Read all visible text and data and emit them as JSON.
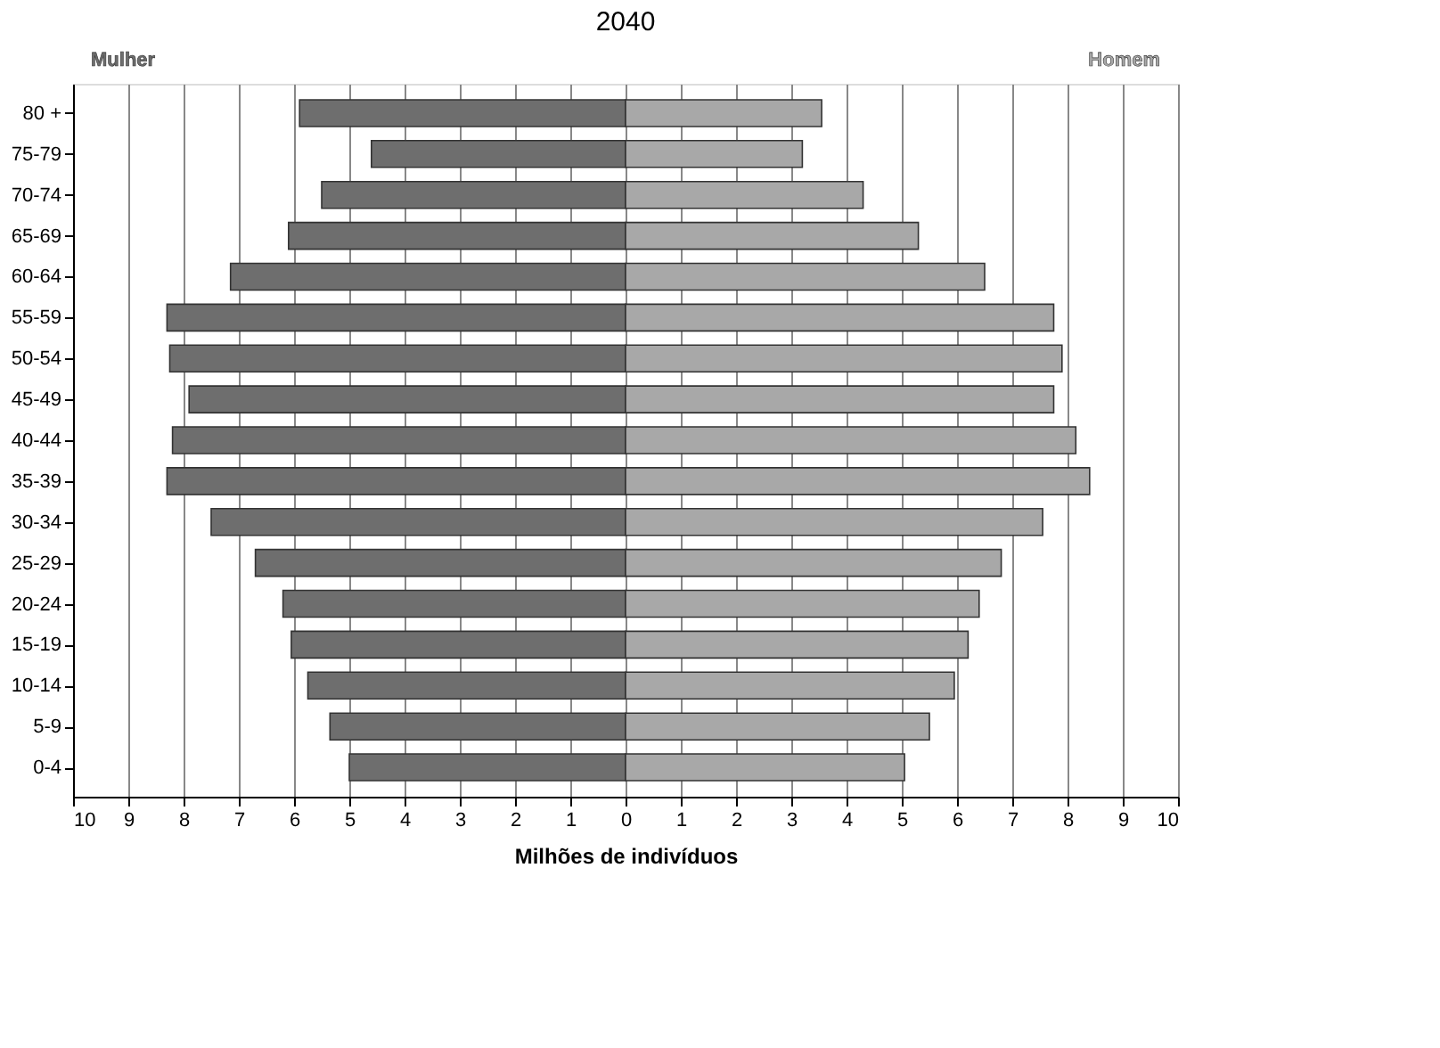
{
  "chart_data": {
    "type": "bar",
    "orientation": "horizontal",
    "stacked": true,
    "title": "2040",
    "xlabel": "Milhões de indivíduos",
    "categories": [
      "80 +",
      "75-79",
      "70-74",
      "65-69",
      "60-64",
      "55-59",
      "50-54",
      "45-49",
      "40-44",
      "35-39",
      "30-34",
      "25-29",
      "20-24",
      "15-19",
      "10-14",
      "5-9",
      "0-4"
    ],
    "series": [
      {
        "name": "Mulher",
        "color": "#6e6e6e",
        "values": [
          -5.9,
          -4.6,
          -5.5,
          -6.1,
          -7.15,
          -8.3,
          -8.25,
          -7.9,
          -8.2,
          -8.3,
          -7.5,
          -6.7,
          -6.2,
          -6.05,
          -5.75,
          -5.35,
          -5.0
        ]
      },
      {
        "name": "Homem",
        "color": "#a8a8a8",
        "values": [
          3.55,
          3.2,
          4.3,
          5.3,
          6.5,
          7.75,
          7.9,
          7.75,
          8.15,
          8.4,
          7.55,
          6.8,
          6.4,
          6.2,
          5.95,
          5.5,
          5.05
        ]
      }
    ],
    "xlim": [
      -10,
      10
    ],
    "xticks": [
      {
        "value": -10,
        "label": "10"
      },
      {
        "value": -9,
        "label": "9"
      },
      {
        "value": -8,
        "label": "8"
      },
      {
        "value": -7,
        "label": "7"
      },
      {
        "value": -6,
        "label": "6"
      },
      {
        "value": -5,
        "label": "5"
      },
      {
        "value": -4,
        "label": "4"
      },
      {
        "value": -3,
        "label": "3"
      },
      {
        "value": -2,
        "label": "2"
      },
      {
        "value": -1,
        "label": "1"
      },
      0,
      1,
      2,
      3,
      4,
      5,
      6,
      7,
      8,
      9,
      10
    ],
    "grid": "x"
  }
}
